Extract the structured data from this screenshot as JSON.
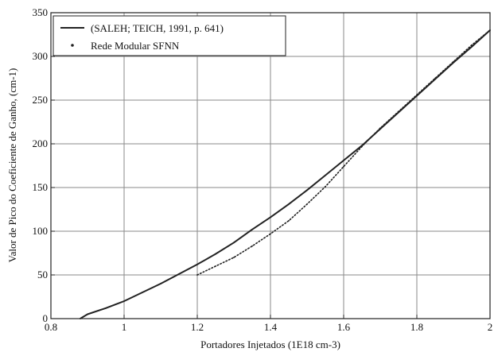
{
  "chart_data": {
    "type": "line",
    "title": "",
    "xlabel": "Portadores Injetados (1E18 cm-3)",
    "ylabel": "Valor de Pico do Coeficiente de Ganho, (cm-1)",
    "xlim": [
      0.8,
      2.0
    ],
    "ylim": [
      0,
      350
    ],
    "xticks": [
      0.8,
      1.0,
      1.2,
      1.4,
      1.6,
      1.8,
      2.0
    ],
    "xtick_labels": [
      "0.8",
      "1",
      "1.2",
      "1.4",
      "1.6",
      "1.8",
      "2"
    ],
    "yticks": [
      0,
      50,
      100,
      150,
      200,
      250,
      300,
      350
    ],
    "ytick_labels": [
      "0",
      "50",
      "100",
      "150",
      "200",
      "250",
      "300",
      "350"
    ],
    "grid": true,
    "legend_position": "top-left",
    "series": [
      {
        "name": "(SALEH; TEICH, 1991, p. 641)",
        "style": "solid",
        "color": "#222222",
        "x": [
          0.88,
          0.9,
          0.95,
          1.0,
          1.05,
          1.1,
          1.15,
          1.2,
          1.25,
          1.3,
          1.35,
          1.4,
          1.45,
          1.5,
          1.55,
          1.6,
          1.65,
          1.7,
          1.75,
          1.8,
          1.85,
          1.9,
          1.95,
          2.0
        ],
        "y": [
          0,
          5,
          12,
          20,
          30,
          40,
          51,
          62,
          74,
          87,
          102,
          116,
          131,
          147,
          164,
          181,
          198,
          217,
          236,
          255,
          274,
          293,
          311,
          330
        ]
      },
      {
        "name": "Rede Modular SFNN",
        "style": "dotted",
        "color": "#222222",
        "x": [
          1.2,
          1.25,
          1.3,
          1.35,
          1.4,
          1.45,
          1.5,
          1.55,
          1.6,
          1.65,
          1.7,
          1.75,
          1.8,
          1.85,
          1.9,
          1.95,
          2.0
        ],
        "y": [
          50,
          60,
          70,
          83,
          97,
          112,
          131,
          151,
          174,
          197,
          218,
          237,
          256,
          275,
          294,
          313,
          330
        ]
      }
    ]
  }
}
